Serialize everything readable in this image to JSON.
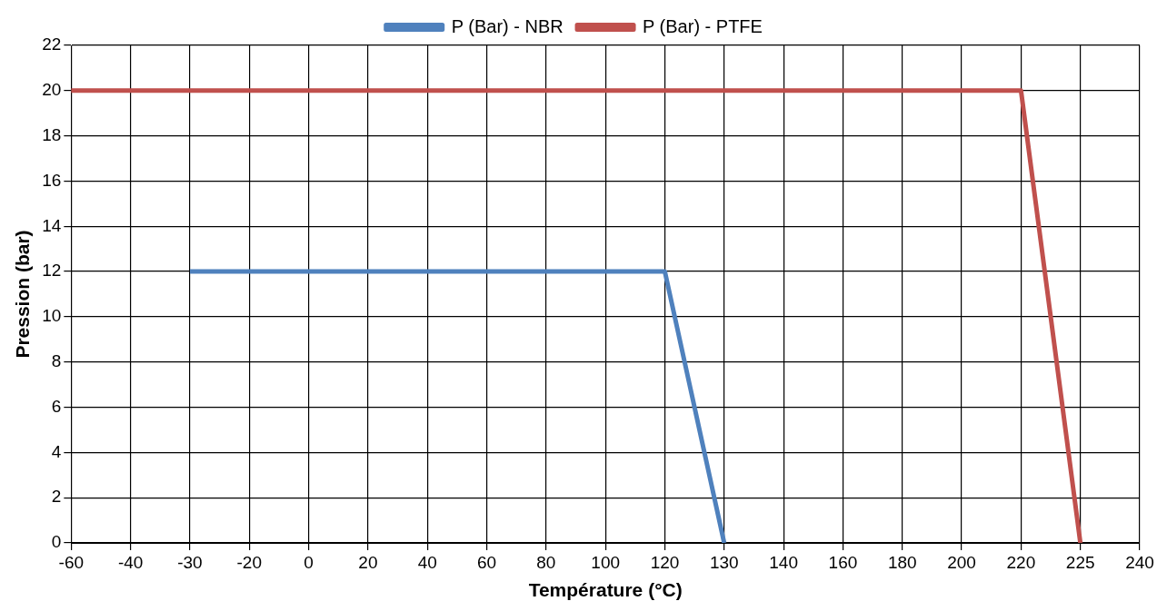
{
  "chart_data": {
    "type": "line",
    "xlabel": "Température (°C)",
    "ylabel": "Pression (bar)",
    "categories": [
      "-60",
      "-40",
      "-30",
      "-20",
      "0",
      "20",
      "40",
      "60",
      "80",
      "100",
      "120",
      "130",
      "140",
      "160",
      "180",
      "200",
      "220",
      "225",
      "240"
    ],
    "series": [
      {
        "name": "P (Bar) - NBR",
        "color": "#4f81bd",
        "values": [
          null,
          null,
          12,
          12,
          12,
          12,
          12,
          12,
          12,
          12,
          12,
          0,
          null,
          null,
          null,
          null,
          null,
          null,
          null
        ]
      },
      {
        "name": "P (Bar) - PTFE",
        "color": "#c0504d",
        "values": [
          20,
          20,
          20,
          20,
          20,
          20,
          20,
          20,
          20,
          20,
          20,
          20,
          20,
          20,
          20,
          20,
          20,
          0,
          null
        ]
      }
    ],
    "ylim": [
      0,
      22
    ],
    "yticks": [
      0,
      2,
      4,
      6,
      8,
      10,
      12,
      14,
      16,
      18,
      20,
      22
    ],
    "grid": true,
    "legend": "top"
  }
}
